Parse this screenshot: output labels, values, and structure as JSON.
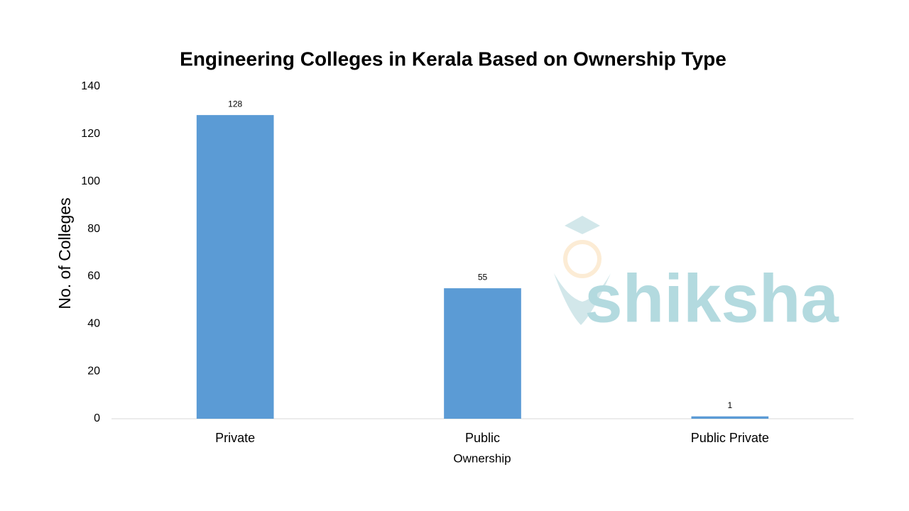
{
  "chart_data": {
    "type": "bar",
    "title": "Engineering Colleges in Kerala Based on Ownership Type",
    "x_label": "Ownership",
    "y_label": "No. of Colleges",
    "categories": [
      "Private",
      "Public",
      "Public Private"
    ],
    "values": [
      128,
      55,
      1
    ],
    "color": "#5b9bd5",
    "ylim": [
      0,
      140
    ],
    "yticks": [
      0,
      20,
      40,
      60,
      80,
      100,
      120,
      140
    ],
    "grid": false,
    "watermark": "shiksha"
  }
}
